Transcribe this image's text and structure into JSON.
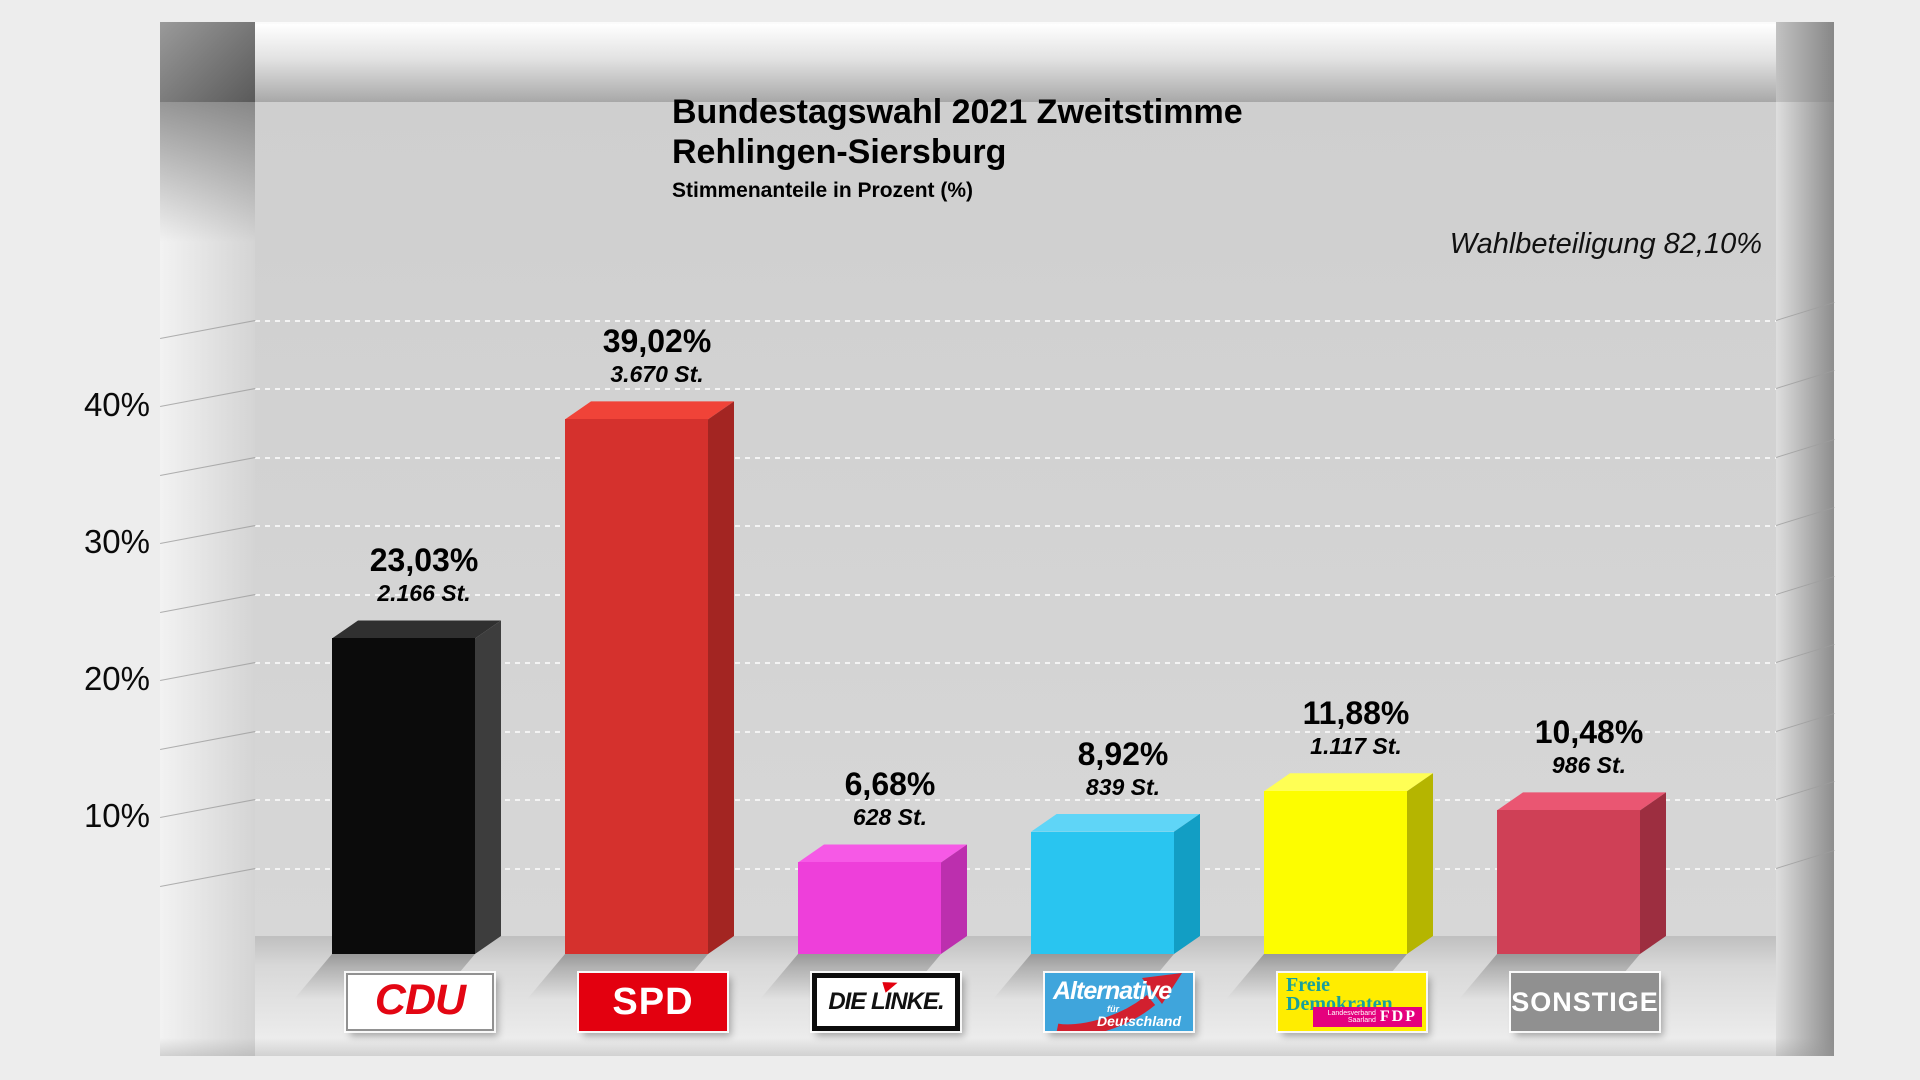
{
  "chart_data": {
    "type": "bar",
    "title": "Bundestagswahl 2021 Zweitstimme",
    "subtitle": "Rehlingen-Siersburg",
    "axis_note": "Stimmenanteile in Prozent (%)",
    "turnout_note": "Wahlbeteiligung 82,10%",
    "ylabel": "Stimmenanteile in Prozent (%)",
    "ylim": [
      0,
      50
    ],
    "grid_step_pct": 5,
    "grid_style": "dotted",
    "legend_position": "none",
    "yticks": [
      {
        "value": 10,
        "label": "10%"
      },
      {
        "value": 20,
        "label": "20%"
      },
      {
        "value": 30,
        "label": "30%"
      },
      {
        "value": 40,
        "label": "40%"
      }
    ],
    "categories": [
      "CDU",
      "SPD",
      "DIE LINKE",
      "AfD",
      "FDP",
      "SONSTIGE"
    ],
    "values": [
      23.03,
      39.02,
      6.68,
      8.92,
      11.88,
      10.48
    ],
    "votes": [
      2166,
      3670,
      628,
      839,
      1117,
      986
    ],
    "parties": [
      {
        "name": "CDU",
        "pct": 23.03,
        "pct_label": "23,03%",
        "votes_label": "2.166 St.",
        "colors": {
          "front": "#0b0b0b",
          "top": "#303030",
          "side": "#3d3d3d"
        },
        "logo": {
          "text": "CDU",
          "text_color": "#e30613",
          "bg": "#ffffff"
        }
      },
      {
        "name": "SPD",
        "pct": 39.02,
        "pct_label": "39,02%",
        "votes_label": "3.670 St.",
        "colors": {
          "front": "#d5312d",
          "top": "#f04338",
          "side": "#a32522"
        },
        "logo": {
          "text": "SPD",
          "text_color": "#ffffff",
          "bg": "#e3000f"
        }
      },
      {
        "name": "DIE LINKE",
        "pct": 6.68,
        "pct_label": "6,68%",
        "votes_label": "628 St.",
        "colors": {
          "front": "#ee3fda",
          "top": "#f659e6",
          "side": "#bc2fae"
        },
        "logo": {
          "text": "DIE LINKE.",
          "text_color": "#111111",
          "bg": "#ffffff",
          "accent": "#e3000f"
        }
      },
      {
        "name": "AfD",
        "pct": 8.92,
        "pct_label": "8,92%",
        "votes_label": "839 St.",
        "colors": {
          "front": "#29c5f0",
          "top": "#5fd5f7",
          "side": "#129ec4"
        },
        "logo": {
          "line1": "Alternative",
          "line2": "für",
          "line3": "Deutschland",
          "text_color": "#ffffff",
          "bg": "#3fa5dc",
          "arrow_color": "#d2202f"
        }
      },
      {
        "name": "FDP",
        "pct": 11.88,
        "pct_label": "11,88%",
        "votes_label": "1.117 St.",
        "colors": {
          "front": "#fdfd00",
          "top": "#ffff55",
          "side": "#b5b500"
        },
        "logo": {
          "line1": "Freie",
          "line2": "Demokraten",
          "chip_small": "Landesverband Saarland",
          "chip": "FDP",
          "text_color": "#18a09b",
          "bg": "#ffed00",
          "chip_bg": "#e5007d"
        }
      },
      {
        "name": "SONSTIGE",
        "pct": 10.48,
        "pct_label": "10,48%",
        "votes_label": "986 St.",
        "colors": {
          "front": "#cf4056",
          "top": "#ea5672",
          "side": "#9d2e40"
        },
        "logo": {
          "text": "SONSTIGE",
          "text_color": "#ffffff",
          "bg": "#909090"
        }
      }
    ]
  }
}
